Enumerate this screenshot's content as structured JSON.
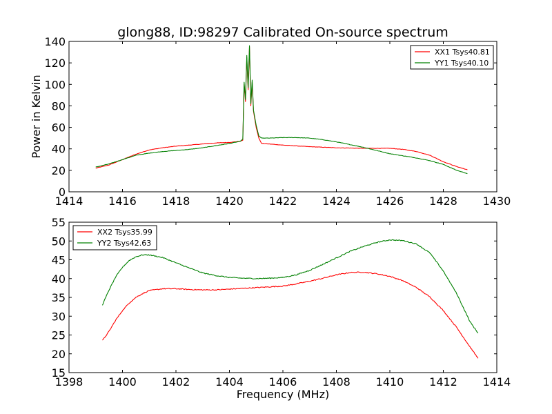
{
  "chart_data": [
    {
      "type": "line",
      "title": "glong88, ID:98297 Calibrated On-source spectrum",
      "xlabel": "",
      "ylabel": "Power in Kelvin",
      "xlim": [
        1414,
        1430
      ],
      "ylim": [
        0,
        140
      ],
      "xticks": [
        "1414",
        "1416",
        "1418",
        "1420",
        "1422",
        "1424",
        "1426",
        "1428",
        "1430"
      ],
      "yticks": [
        "0",
        "20",
        "40",
        "60",
        "80",
        "100",
        "120",
        "140"
      ],
      "legend_position": "top-right",
      "series": [
        {
          "name": "XX1 Tsys40.81",
          "color": "#ff0000",
          "points": [
            [
              1415.0,
              22
            ],
            [
              1415.5,
              25
            ],
            [
              1416.0,
              30
            ],
            [
              1416.5,
              35
            ],
            [
              1417.0,
              39
            ],
            [
              1417.5,
              41
            ],
            [
              1418.0,
              42.5
            ],
            [
              1418.5,
              43.5
            ],
            [
              1419.0,
              44.5
            ],
            [
              1419.5,
              45.5
            ],
            [
              1420.0,
              46
            ],
            [
              1420.4,
              47
            ],
            [
              1420.5,
              48
            ],
            [
              1420.55,
              100
            ],
            [
              1420.6,
              84
            ],
            [
              1420.65,
              125
            ],
            [
              1420.7,
              95
            ],
            [
              1420.75,
              135
            ],
            [
              1420.8,
              80
            ],
            [
              1420.85,
              102
            ],
            [
              1420.9,
              75
            ],
            [
              1421.0,
              60
            ],
            [
              1421.1,
              50
            ],
            [
              1421.2,
              45
            ],
            [
              1421.5,
              44.5
            ],
            [
              1422.0,
              43.5
            ],
            [
              1423.0,
              42
            ],
            [
              1424.0,
              41
            ],
            [
              1425.0,
              40.5
            ],
            [
              1425.5,
              40.5
            ],
            [
              1426.0,
              40.5
            ],
            [
              1426.5,
              39.5
            ],
            [
              1427.0,
              37.5
            ],
            [
              1427.5,
              34
            ],
            [
              1428.0,
              28
            ],
            [
              1428.5,
              23.5
            ],
            [
              1428.9,
              20.5
            ]
          ]
        },
        {
          "name": "YY1 Tsys40.10",
          "color": "#008000",
          "points": [
            [
              1415.0,
              23
            ],
            [
              1415.5,
              26
            ],
            [
              1416.0,
              30
            ],
            [
              1416.5,
              34
            ],
            [
              1417.0,
              36
            ],
            [
              1417.5,
              37.5
            ],
            [
              1418.0,
              38.5
            ],
            [
              1418.5,
              39.5
            ],
            [
              1419.0,
              41
            ],
            [
              1419.5,
              43
            ],
            [
              1420.0,
              45
            ],
            [
              1420.4,
              47
            ],
            [
              1420.5,
              49
            ],
            [
              1420.55,
              102
            ],
            [
              1420.6,
              86
            ],
            [
              1420.65,
              127
            ],
            [
              1420.7,
              97
            ],
            [
              1420.75,
              136
            ],
            [
              1420.8,
              82
            ],
            [
              1420.85,
              104
            ],
            [
              1420.9,
              76
            ],
            [
              1421.0,
              62
            ],
            [
              1421.1,
              52
            ],
            [
              1421.2,
              50
            ],
            [
              1421.5,
              50
            ],
            [
              1422.0,
              50.5
            ],
            [
              1422.5,
              50.5
            ],
            [
              1423.0,
              50
            ],
            [
              1423.5,
              48.5
            ],
            [
              1424.0,
              46.5
            ],
            [
              1424.5,
              44
            ],
            [
              1425.0,
              41.5
            ],
            [
              1425.5,
              38.5
            ],
            [
              1426.0,
              35.5
            ],
            [
              1426.5,
              33.5
            ],
            [
              1427.0,
              31.5
            ],
            [
              1427.5,
              29
            ],
            [
              1428.0,
              25.5
            ],
            [
              1428.5,
              20
            ],
            [
              1428.9,
              17
            ]
          ]
        }
      ]
    },
    {
      "type": "line",
      "title": "",
      "xlabel": "Frequency (MHz)",
      "ylabel": "",
      "xlim": [
        1398,
        1414
      ],
      "ylim": [
        15,
        55
      ],
      "xticks": [
        "1398",
        "1400",
        "1402",
        "1404",
        "1406",
        "1408",
        "1410",
        "1412",
        "1414"
      ],
      "yticks": [
        "15",
        "20",
        "25",
        "30",
        "35",
        "40",
        "45",
        "50",
        "55"
      ],
      "legend_position": "top-left",
      "series": [
        {
          "name": "XX2 Tsys35.99",
          "color": "#ff0000",
          "points": [
            [
              1399.25,
              23.5
            ],
            [
              1399.5,
              26
            ],
            [
              1399.75,
              29
            ],
            [
              1400.0,
              31.5
            ],
            [
              1400.25,
              33.5
            ],
            [
              1400.5,
              35
            ],
            [
              1400.75,
              36
            ],
            [
              1401.0,
              36.8
            ],
            [
              1401.5,
              37.3
            ],
            [
              1402.0,
              37.3
            ],
            [
              1402.5,
              37.1
            ],
            [
              1403.0,
              37.0
            ],
            [
              1403.5,
              37.0
            ],
            [
              1404.0,
              37.2
            ],
            [
              1404.5,
              37.4
            ],
            [
              1405.0,
              37.6
            ],
            [
              1405.5,
              37.8
            ],
            [
              1406.0,
              38.0
            ],
            [
              1406.5,
              38.6
            ],
            [
              1407.0,
              39.3
            ],
            [
              1407.5,
              40.1
            ],
            [
              1408.0,
              41.0
            ],
            [
              1408.5,
              41.6
            ],
            [
              1409.0,
              41.7
            ],
            [
              1409.5,
              41.3
            ],
            [
              1410.0,
              40.6
            ],
            [
              1410.5,
              39.4
            ],
            [
              1411.0,
              37.6
            ],
            [
              1411.5,
              35.1
            ],
            [
              1412.0,
              31.5
            ],
            [
              1412.5,
              27.0
            ],
            [
              1413.0,
              21.8
            ],
            [
              1413.3,
              18.8
            ]
          ]
        },
        {
          "name": "YY2 Tsys42.63",
          "color": "#008000",
          "points": [
            [
              1399.25,
              33
            ],
            [
              1399.5,
              37
            ],
            [
              1399.75,
              40.5
            ],
            [
              1400.0,
              43
            ],
            [
              1400.25,
              44.8
            ],
            [
              1400.5,
              45.8
            ],
            [
              1400.75,
              46.3
            ],
            [
              1401.0,
              46.3
            ],
            [
              1401.5,
              45.6
            ],
            [
              1402.0,
              44.2
            ],
            [
              1402.5,
              42.8
            ],
            [
              1403.0,
              41.5
            ],
            [
              1403.5,
              40.8
            ],
            [
              1404.0,
              40.3
            ],
            [
              1404.5,
              40.1
            ],
            [
              1405.0,
              40.0
            ],
            [
              1405.5,
              40.1
            ],
            [
              1406.0,
              40.3
            ],
            [
              1406.5,
              41.0
            ],
            [
              1407.0,
              42.2
            ],
            [
              1407.5,
              43.8
            ],
            [
              1408.0,
              45.5
            ],
            [
              1408.5,
              47.2
            ],
            [
              1409.0,
              48.5
            ],
            [
              1409.5,
              49.6
            ],
            [
              1410.0,
              50.3
            ],
            [
              1410.5,
              50.1
            ],
            [
              1411.0,
              49.2
            ],
            [
              1411.5,
              46.8
            ],
            [
              1412.0,
              42.0
            ],
            [
              1412.5,
              36.0
            ],
            [
              1413.0,
              28.5
            ],
            [
              1413.3,
              25.5
            ]
          ]
        }
      ]
    }
  ]
}
